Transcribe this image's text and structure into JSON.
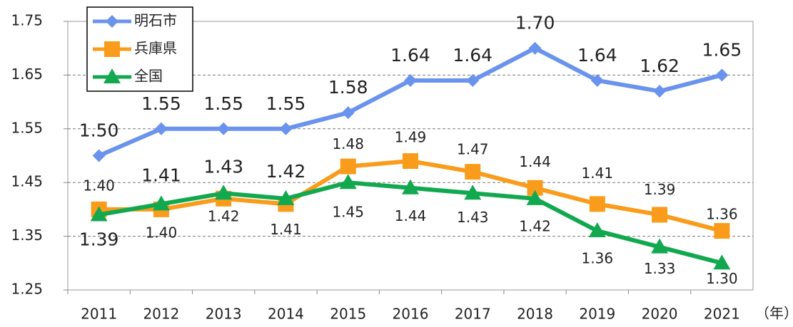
{
  "chart_data": {
    "type": "line",
    "x_label": "（年）",
    "categories": [
      "2011",
      "2012",
      "2013",
      "2014",
      "2015",
      "2016",
      "2017",
      "2018",
      "2019",
      "2020",
      "2021"
    ],
    "ylim": [
      1.25,
      1.75
    ],
    "yticks": [
      1.25,
      1.35,
      1.45,
      1.55,
      1.65,
      1.75
    ],
    "grid": true,
    "legend": "top-left",
    "series": [
      {
        "name": "明石市",
        "color": "#6a93ee",
        "marker": "diamond",
        "values": [
          1.5,
          1.55,
          1.55,
          1.55,
          1.58,
          1.64,
          1.64,
          1.7,
          1.64,
          1.62,
          1.65
        ],
        "value_labels": [
          "1.50",
          "1.55",
          "1.55",
          "1.55",
          "1.58",
          "1.64",
          "1.64",
          "1.70",
          "1.64",
          "1.62",
          "1.65"
        ]
      },
      {
        "name": "兵庫県",
        "color": "#f99c1c",
        "marker": "square",
        "values": [
          1.4,
          1.4,
          1.42,
          1.41,
          1.48,
          1.49,
          1.47,
          1.44,
          1.41,
          1.39,
          1.36
        ],
        "value_labels": [
          "1.40",
          "1.40",
          "1.42",
          "1.41",
          "1.48",
          "1.49",
          "1.47",
          "1.44",
          "1.41",
          "1.39",
          "1.36"
        ]
      },
      {
        "name": "全国",
        "color": "#12a84f",
        "marker": "triangle",
        "values": [
          1.39,
          1.41,
          1.43,
          1.42,
          1.45,
          1.44,
          1.43,
          1.42,
          1.36,
          1.33,
          1.3
        ],
        "value_labels": [
          "1.39",
          "1.41",
          "1.43",
          "1.42",
          "1.45",
          "1.44",
          "1.43",
          "1.42",
          "1.36",
          "1.33",
          "1.30"
        ]
      }
    ]
  }
}
